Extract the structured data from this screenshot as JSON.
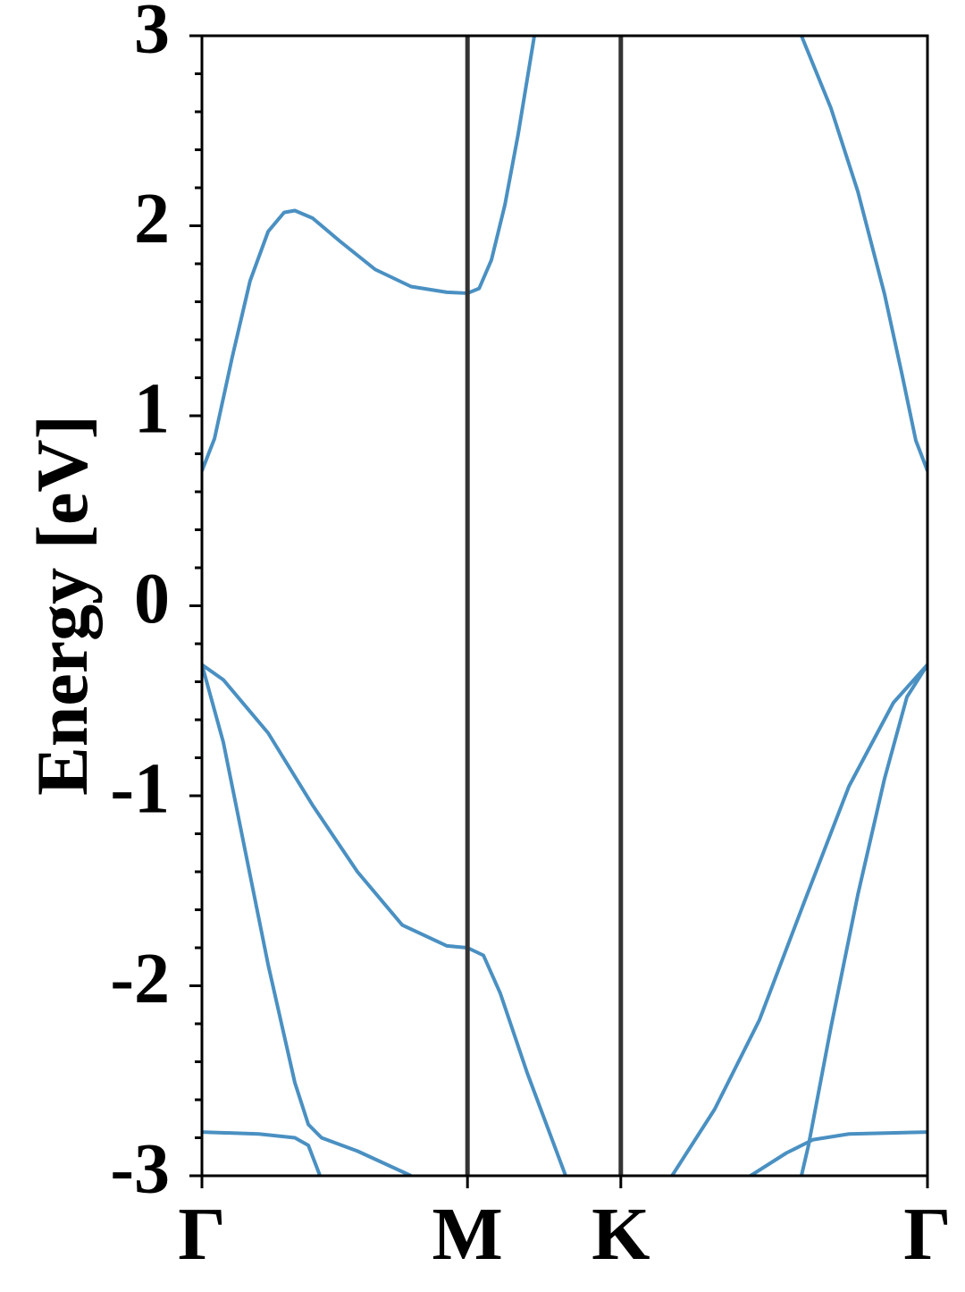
{
  "chart_data": {
    "type": "line",
    "ylabel": "Energy [eV]",
    "xlim": [
      0,
      2.366
    ],
    "ylim": [
      -3,
      3
    ],
    "xticks": [
      {
        "value": 0,
        "label": "Γ"
      },
      {
        "value": 0.866,
        "label": "M"
      },
      {
        "value": 1.366,
        "label": "K"
      },
      {
        "value": 2.366,
        "label": "Γ"
      }
    ],
    "yticks": [
      -3,
      -2,
      -1,
      0,
      1,
      2,
      3
    ],
    "yminorticks": [
      -2.8,
      -2.6,
      -2.4,
      -2.2,
      -1.8,
      -1.6,
      -1.4,
      -1.2,
      -0.8,
      -0.6,
      -0.4,
      -0.2,
      0.2,
      0.4,
      0.6,
      0.8,
      1.2,
      1.4,
      1.6,
      1.8,
      2.2,
      2.4,
      2.6,
      2.8
    ],
    "xtick_lines": true,
    "xtick_line_color": "#333333",
    "series": [
      {
        "color": "#4a90c2",
        "x": [
          0,
          0.041,
          0.099,
          0.157,
          0.216,
          0.268,
          0.303,
          0.361,
          0.449,
          0.565,
          0.682,
          0.799,
          0.866,
          0.904,
          0.944,
          0.988,
          1.031,
          1.084
        ],
        "values": [
          0.71,
          0.88,
          1.31,
          1.71,
          1.97,
          2.07,
          2.08,
          2.04,
          1.92,
          1.77,
          1.68,
          1.65,
          1.645,
          1.67,
          1.82,
          2.11,
          2.48,
          3.0
        ]
      },
      {
        "color": "#4a90c2",
        "x": [
          1.955,
          2.051,
          2.139,
          2.226,
          2.284,
          2.328,
          2.366
        ],
        "values": [
          3.0,
          2.62,
          2.18,
          1.64,
          1.21,
          0.87,
          0.71
        ]
      },
      {
        "color": "#4a90c2",
        "x": [
          0,
          0.07,
          0.216,
          0.361,
          0.507,
          0.653,
          0.799,
          0.866,
          0.918,
          0.973,
          1.061,
          1.186
        ],
        "values": [
          -0.31,
          -0.39,
          -0.67,
          -1.05,
          -1.4,
          -1.68,
          -1.79,
          -1.8,
          -1.84,
          -2.04,
          -2.46,
          -3.0
        ]
      },
      {
        "color": "#4a90c2",
        "x": [
          0,
          0.07,
          0.216,
          0.303,
          0.347,
          0.39,
          0.507,
          0.682
        ],
        "values": [
          -0.31,
          -0.72,
          -1.89,
          -2.51,
          -2.73,
          -2.8,
          -2.87,
          -3.0
        ]
      },
      {
        "color": "#4a90c2",
        "x": [
          0,
          0.186,
          0.303,
          0.347,
          0.385
        ],
        "values": [
          -2.77,
          -2.78,
          -2.8,
          -2.84,
          -3.0
        ]
      },
      {
        "color": "#4a90c2",
        "x": [
          1.533,
          1.672,
          1.818,
          1.964,
          2.11,
          2.255,
          2.366
        ],
        "values": [
          -3.0,
          -2.65,
          -2.18,
          -1.56,
          -0.95,
          -0.51,
          -0.31
        ]
      },
      {
        "color": "#4a90c2",
        "x": [
          1.955,
          1.978,
          2.051,
          2.139,
          2.226,
          2.299,
          2.366
        ],
        "values": [
          -3.0,
          -2.84,
          -2.22,
          -1.52,
          -0.91,
          -0.48,
          -0.31
        ]
      },
      {
        "color": "#4a90c2",
        "x": [
          1.789,
          1.906,
          1.993,
          2.11,
          2.366
        ],
        "values": [
          -3.0,
          -2.88,
          -2.81,
          -2.78,
          -2.77
        ]
      }
    ]
  }
}
